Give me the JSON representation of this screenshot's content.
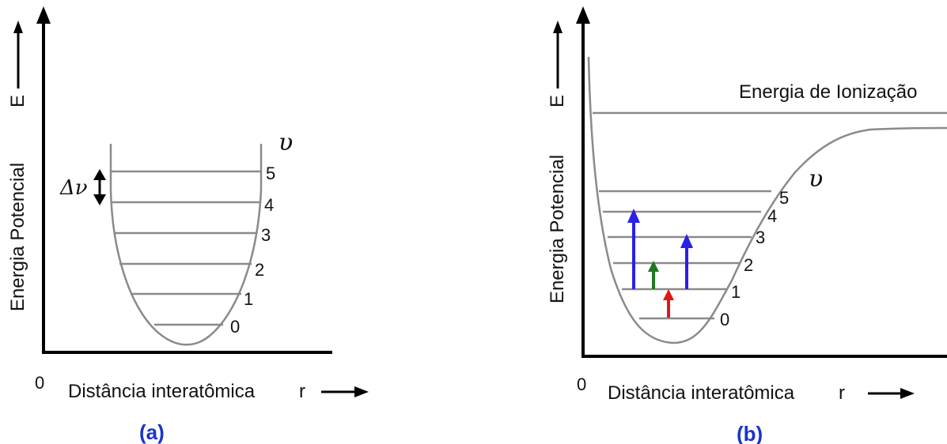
{
  "panel_a": {
    "y_axis_label": "Energia Potencial",
    "y_axis_symbol": "E",
    "x_axis_label": "Distância interatômica",
    "x_axis_symbol": "r",
    "origin_label": "0",
    "quantum_symbol": "υ",
    "delta_label": "Δν",
    "levels": [
      "0",
      "1",
      "2",
      "3",
      "4",
      "5"
    ],
    "caption": "(a)"
  },
  "panel_b": {
    "y_axis_label": "Energia Potencial",
    "y_axis_symbol": "E",
    "x_axis_label": "Distância interatômica",
    "x_axis_symbol": "r",
    "origin_label": "0",
    "quantum_symbol": "υ",
    "ionization_label": "Energia de Ionização",
    "levels": [
      "0",
      "1",
      "2",
      "3",
      "4",
      "5"
    ],
    "caption": "(b)"
  },
  "colors": {
    "curve": "#8a8a8a",
    "axis": "#000000",
    "caption": "#1a33cc",
    "arrow_blue": "#2a20e8",
    "arrow_green": "#1f7a1f",
    "arrow_red": "#e01818"
  }
}
